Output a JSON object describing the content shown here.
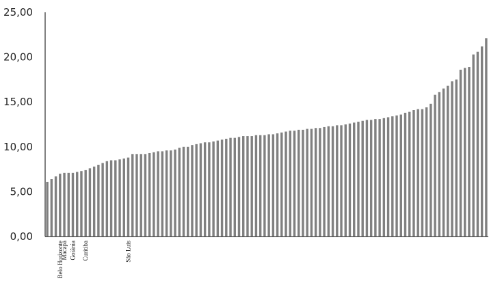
{
  "chart_data": {
    "type": "bar",
    "title": "",
    "xlabel": "",
    "ylabel": "",
    "ylim": [
      0,
      25
    ],
    "yticks": [
      "0,00",
      "5,00",
      "10,00",
      "15,00",
      "20,00",
      "25,00"
    ],
    "ytick_values": [
      0,
      5,
      10,
      15,
      20,
      25
    ],
    "grid": false,
    "bar_color": "#808080",
    "labeled_categories": [
      {
        "index": 3,
        "label": "Belo Horizonte"
      },
      {
        "index": 4,
        "label": "Macapá"
      },
      {
        "index": 6,
        "label": "Goiânia"
      },
      {
        "index": 9,
        "label": "Curitiba"
      },
      {
        "index": 19,
        "label": "São Luís"
      }
    ],
    "values": [
      6.1,
      6.4,
      6.7,
      7.0,
      7.1,
      7.1,
      7.1,
      7.2,
      7.3,
      7.4,
      7.6,
      7.8,
      8.0,
      8.2,
      8.4,
      8.5,
      8.5,
      8.6,
      8.7,
      8.8,
      9.2,
      9.2,
      9.2,
      9.2,
      9.3,
      9.4,
      9.5,
      9.5,
      9.6,
      9.6,
      9.7,
      9.9,
      10.0,
      10.0,
      10.2,
      10.3,
      10.4,
      10.5,
      10.5,
      10.6,
      10.7,
      10.8,
      10.9,
      11.0,
      11.0,
      11.1,
      11.2,
      11.2,
      11.2,
      11.3,
      11.3,
      11.3,
      11.4,
      11.4,
      11.5,
      11.6,
      11.7,
      11.8,
      11.8,
      11.9,
      11.9,
      12.0,
      12.0,
      12.1,
      12.1,
      12.2,
      12.3,
      12.3,
      12.4,
      12.4,
      12.5,
      12.6,
      12.7,
      12.8,
      12.9,
      13.0,
      13.0,
      13.1,
      13.1,
      13.2,
      13.3,
      13.4,
      13.5,
      13.6,
      13.8,
      13.9,
      14.1,
      14.2,
      14.2,
      14.4,
      14.8,
      15.8,
      16.1,
      16.5,
      16.8,
      17.3,
      17.5,
      18.6,
      18.8,
      18.9,
      20.3,
      20.6,
      21.2,
      22.1
    ]
  }
}
